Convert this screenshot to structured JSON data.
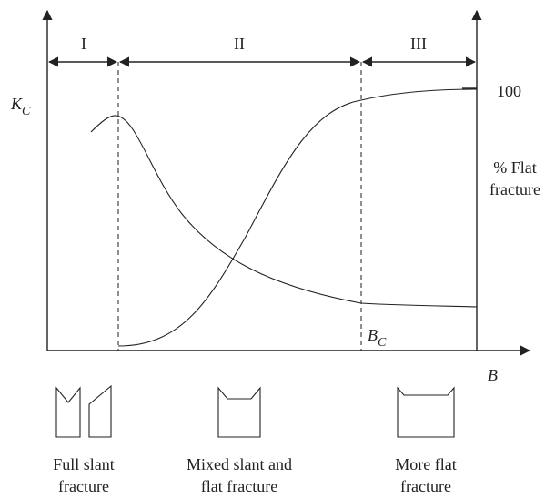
{
  "regions": [
    "I",
    "II",
    "III"
  ],
  "axes": {
    "y_label": "K",
    "y_label_sub": "C",
    "x_label": "B",
    "critical_label": "B",
    "critical_sub": "C",
    "right_tick": "100",
    "right_label": [
      "% Flat",
      "fracture"
    ]
  },
  "specimens": [
    {
      "lines": [
        "Full slant",
        "fracture"
      ]
    },
    {
      "lines": [
        "Mixed slant and",
        "flat fracture"
      ]
    },
    {
      "lines": [
        "More flat",
        "fracture"
      ]
    }
  ]
}
